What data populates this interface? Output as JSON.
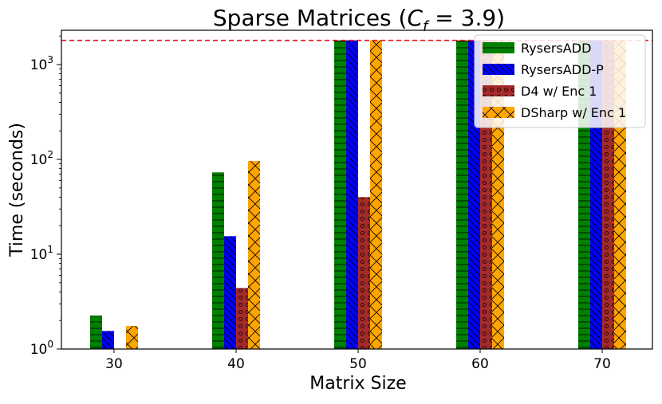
{
  "chart_data": {
    "type": "bar",
    "title_prefix": "Sparse Matrices (",
    "title_var": "C",
    "title_sub": "f",
    "title_suffix": " = 3.9)",
    "title": "Sparse Matrices (C_f = 3.9)",
    "xlabel": "Matrix Size",
    "ylabel": "Time (seconds)",
    "yscale": "log",
    "ylim": [
      1,
      2300
    ],
    "categories": [
      "30",
      "40",
      "50",
      "60",
      "70"
    ],
    "ytick_base": "10",
    "ytick_exponents": [
      "0",
      "1",
      "2",
      "3"
    ],
    "timeout_line": {
      "value": 1800,
      "color": "#e41a1c",
      "style": "dashed"
    },
    "series": [
      {
        "name": "RysersADD",
        "color": "#008000",
        "hatch": "horizontal",
        "values": [
          2.25,
          73,
          1800,
          1800,
          1800
        ]
      },
      {
        "name": "RysersADD-P",
        "color": "#0000ff",
        "hatch": "backslash",
        "values": [
          1.55,
          15.5,
          1800,
          1800,
          1800
        ]
      },
      {
        "name": "D4 w/ Enc 1",
        "color": "#a52a2a",
        "hatch": "circles",
        "values": [
          null,
          4.4,
          40,
          1800,
          1800
        ]
      },
      {
        "name": "DSharp w/ Enc 1",
        "color": "#ffa500",
        "hatch": "cross",
        "values": [
          1.75,
          96,
          1800,
          1800,
          1800
        ]
      }
    ],
    "legend_position": "top-right"
  }
}
